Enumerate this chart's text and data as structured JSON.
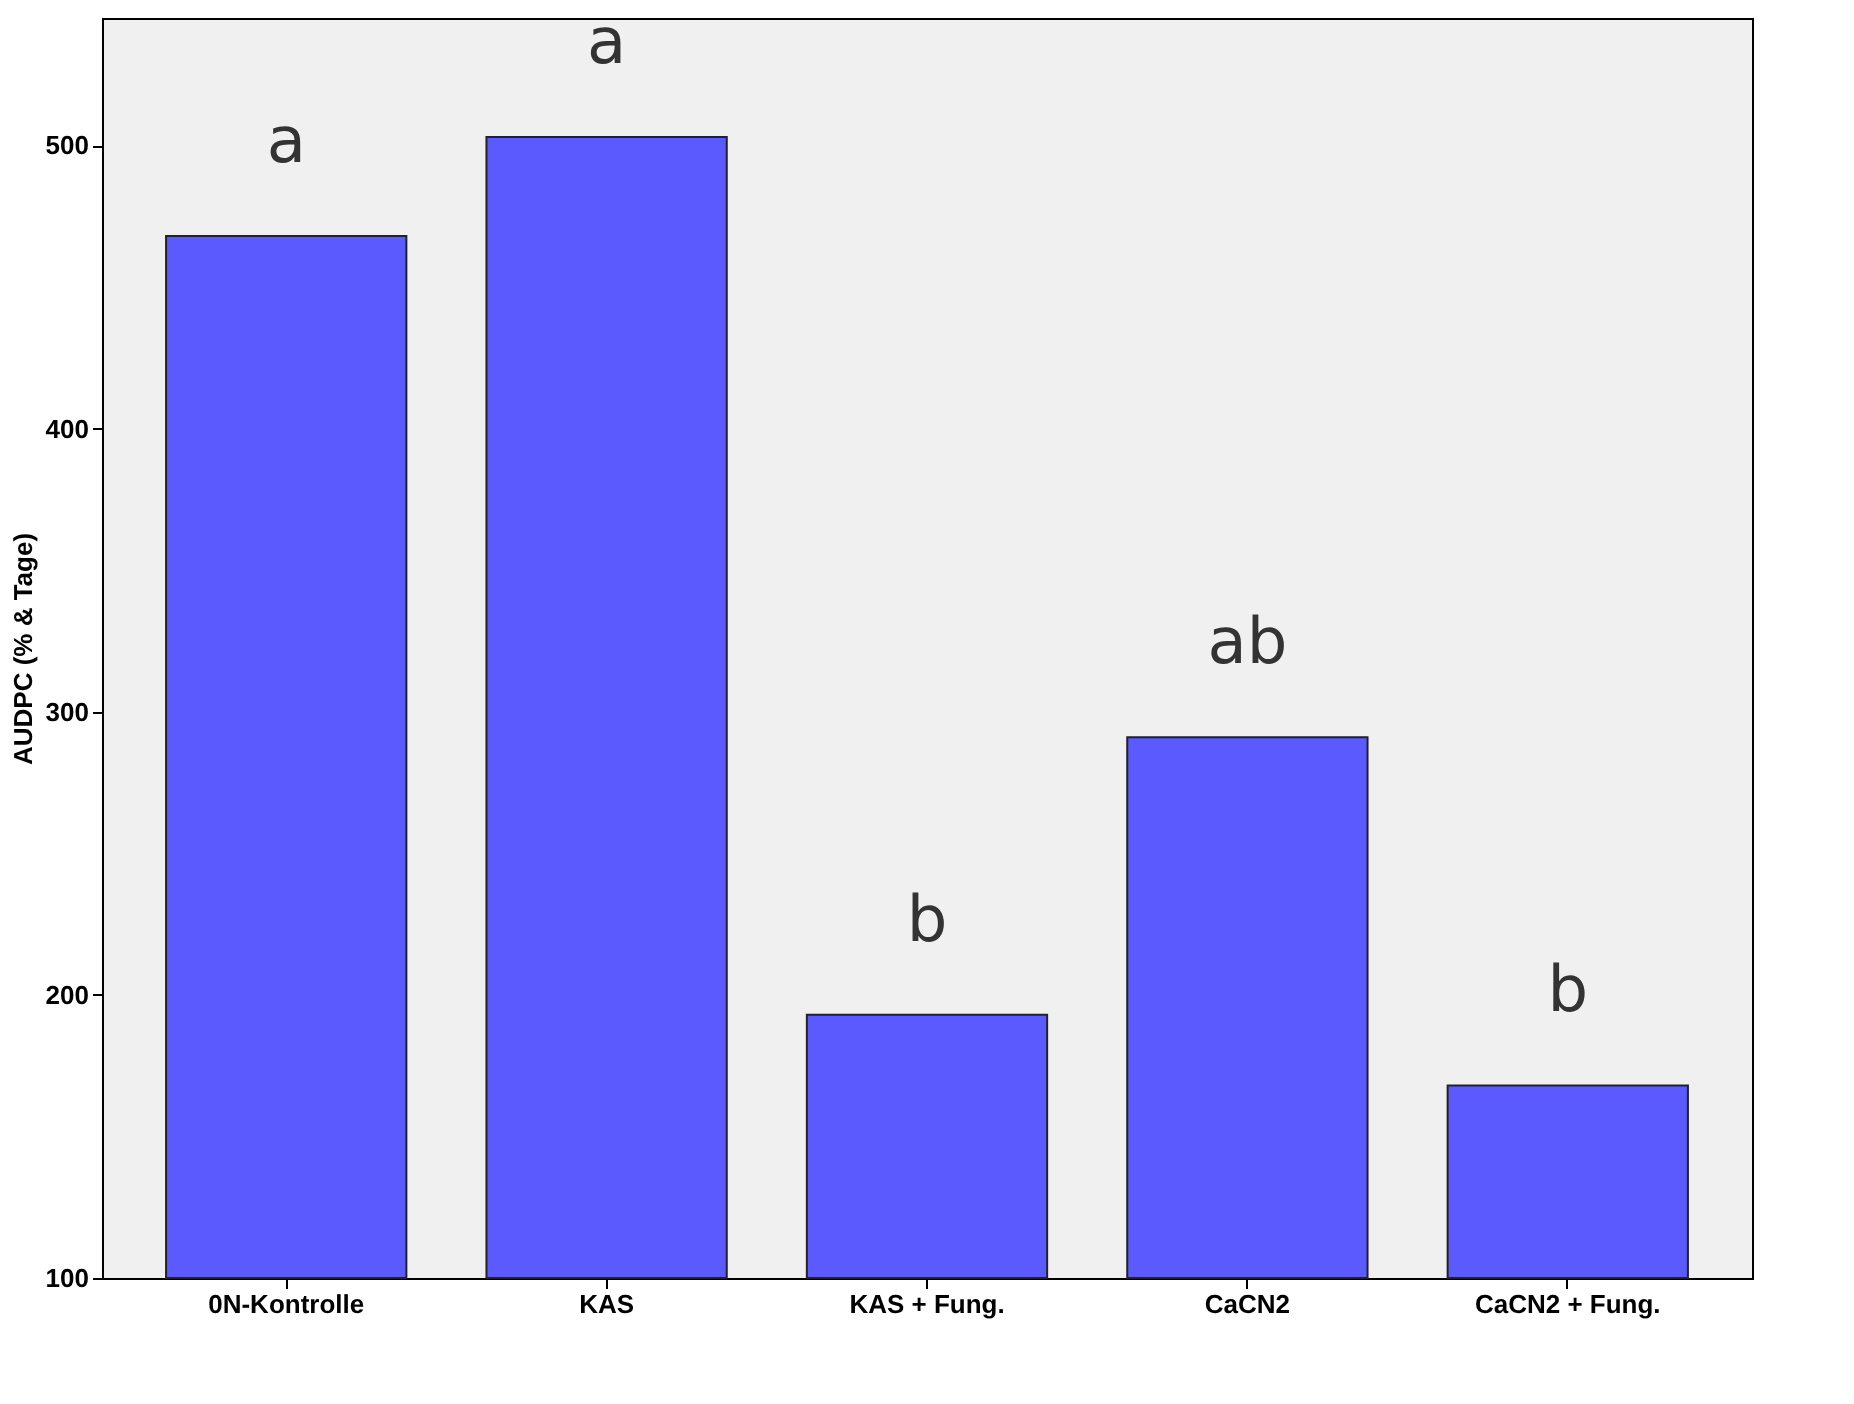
{
  "chart_data": {
    "type": "bar",
    "ylabel": "AUDPC (% & Tage)",
    "categories": [
      "0N-Kontrolle",
      "KAS",
      "KAS + Fung.",
      "CaCN2",
      "CaCN2 + Fung."
    ],
    "values": [
      468,
      503,
      193,
      291,
      168
    ],
    "color": "#5a5aff",
    "ylim": [
      100,
      545
    ],
    "yticks": [
      100,
      200,
      300,
      400,
      500
    ],
    "grid": false,
    "annotations": [
      "a",
      "a",
      "b",
      "ab",
      "b"
    ]
  }
}
